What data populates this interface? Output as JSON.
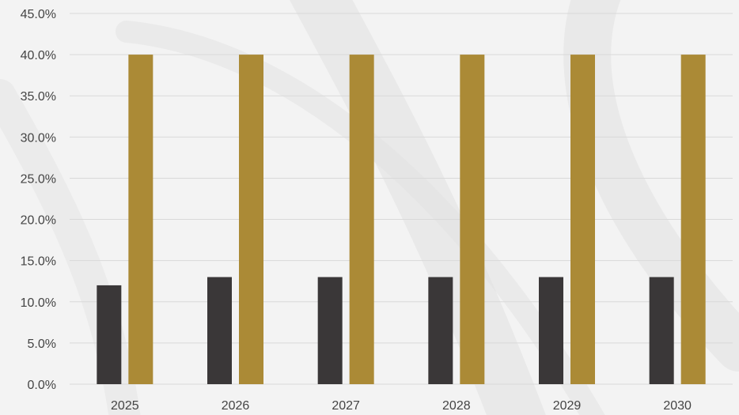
{
  "chart_data": {
    "type": "bar",
    "categories": [
      "2025",
      "2026",
      "2027",
      "2028",
      "2029",
      "2030"
    ],
    "series": [
      {
        "values": [
          12,
          13,
          13,
          13,
          13,
          13
        ],
        "color": "#3a3738"
      },
      {
        "values": [
          40,
          40,
          40,
          40,
          40,
          40
        ],
        "color": "#ab8a36"
      }
    ],
    "ylim": [
      0,
      45
    ],
    "yticks": [
      0,
      5,
      10,
      15,
      20,
      25,
      30,
      35,
      40,
      45
    ],
    "ytick_labels": [
      "0.0%",
      "5.0%",
      "10.0%",
      "15.0%",
      "20.0%",
      "25.0%",
      "30.0%",
      "35.0%",
      "40.0%",
      "45.0%"
    ],
    "grid": true,
    "legend": "none"
  },
  "colors": {
    "background": "#f3f3f3",
    "watermark": "#e2e2e2"
  }
}
